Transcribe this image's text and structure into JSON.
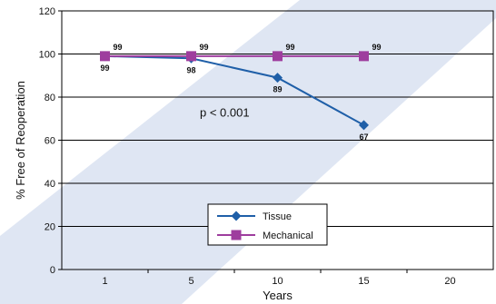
{
  "chart_data": {
    "type": "line",
    "x": [
      1,
      5,
      10,
      15,
      20
    ],
    "x_tick_labels": [
      "1",
      "5",
      "10",
      "15",
      "20"
    ],
    "xlabel": "Years",
    "ylabel": "% Free of Reoperation",
    "ylim": [
      0,
      120
    ],
    "y_ticks": [
      0,
      20,
      40,
      60,
      80,
      100,
      120
    ],
    "grid": "horizontal",
    "legend_position": "bottom-center",
    "annotation": "p < 0.001",
    "series": [
      {
        "name": "Tissue",
        "color": "#1f5fa8",
        "marker": "diamond",
        "x": [
          1,
          5,
          10,
          15
        ],
        "values": [
          99,
          98,
          89,
          67
        ],
        "labels": [
          "99",
          "98",
          "89",
          "67"
        ],
        "label_position": "below"
      },
      {
        "name": "Mechanical",
        "color": "#9e3d9e",
        "marker": "square",
        "x": [
          1,
          5,
          10,
          15
        ],
        "values": [
          99,
          99,
          99,
          99
        ],
        "labels": [
          "99",
          "99",
          "99",
          "99"
        ],
        "label_position": "above-right"
      }
    ],
    "colors": {
      "background_shade": "#dfe6f3"
    }
  }
}
